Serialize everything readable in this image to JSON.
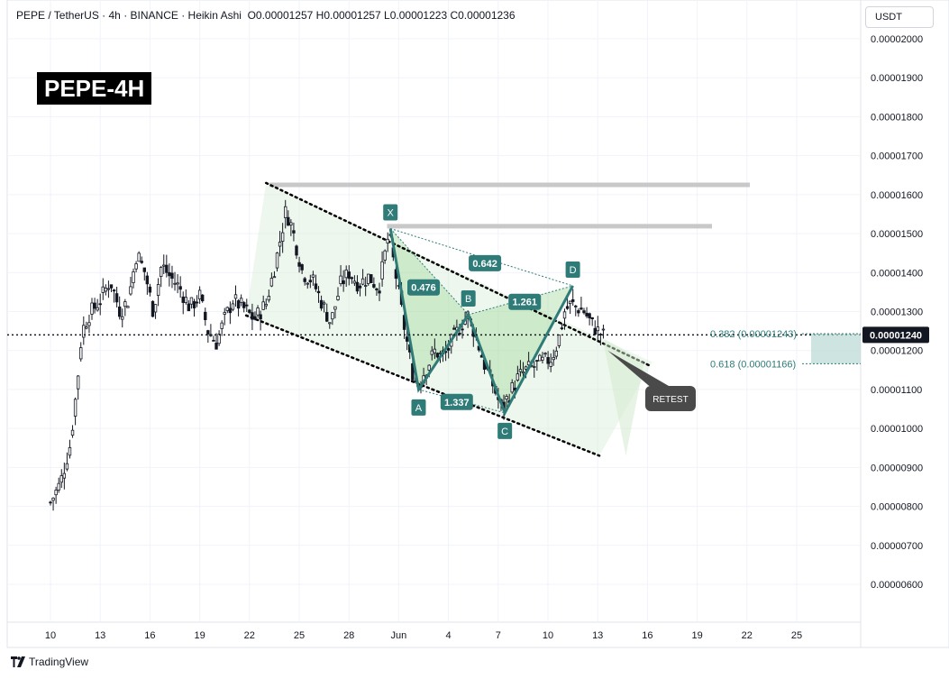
{
  "header": {
    "symbol": "PEPE / TetherUS",
    "interval": "4h",
    "exchange": "BINANCE",
    "chart_style": "Heikin Ashi",
    "ohlc_text": "O0.00001257  H0.00001257  L0.00001223  C0.00001236"
  },
  "badge": {
    "label": "PEPE-4H"
  },
  "currency_button": {
    "label": "USDT"
  },
  "footer": {
    "brand": "TradingView",
    "brand_icon": "tradingview-logo-icon"
  },
  "colors": {
    "bull": "#131722",
    "teal": "#2f7b78",
    "fill_green": "#d9eed7",
    "retest": "#4a4a4a",
    "level_gray": "#c8c8c8"
  },
  "chart_data": {
    "type": "candlestick",
    "title": "PEPE-4H",
    "x_axis": {
      "ticks": [
        "10",
        "13",
        "16",
        "19",
        "22",
        "25",
        "28",
        "Jun",
        "4",
        "7",
        "10",
        "13",
        "16",
        "19",
        "22",
        "25"
      ],
      "range_days": [
        0,
        48
      ]
    },
    "y_axis": {
      "ticks": [
        "0.00002000",
        "0.00001900",
        "0.00001800",
        "0.00001700",
        "0.00001600",
        "0.00001500",
        "0.00001400",
        "0.00001300",
        "0.00001200",
        "0.00001100",
        "0.00001000",
        "0.00000900",
        "0.00000800",
        "0.00000700",
        "0.00000600"
      ],
      "ylim": [
        5.4e-06,
        2.05e-05
      ],
      "position": "right"
    },
    "current_price": {
      "label": "0.00001240",
      "value": 1.24e-05
    },
    "price_path": [
      [
        0.0,
        8.1e-06
      ],
      [
        0.6,
        8.6e-06
      ],
      [
        1.2,
        9.6e-06
      ],
      [
        1.6,
        1.11e-05
      ],
      [
        1.9,
        1.25e-05
      ],
      [
        2.3,
        1.29e-05
      ],
      [
        3.0,
        1.33e-05
      ],
      [
        3.6,
        1.38e-05
      ],
      [
        4.2,
        1.3e-05
      ],
      [
        4.7,
        1.33e-05
      ],
      [
        5.2,
        1.45e-05
      ],
      [
        5.7,
        1.4e-05
      ],
      [
        6.2,
        1.3e-05
      ],
      [
        6.7,
        1.42e-05
      ],
      [
        7.2,
        1.39e-05
      ],
      [
        7.8,
        1.36e-05
      ],
      [
        8.4,
        1.31e-05
      ],
      [
        9.0,
        1.34e-05
      ],
      [
        9.5,
        1.25e-05
      ],
      [
        10.0,
        1.22e-05
      ],
      [
        10.5,
        1.28e-05
      ],
      [
        11.0,
        1.33e-05
      ],
      [
        11.6,
        1.31e-05
      ],
      [
        12.3,
        1.28e-05
      ],
      [
        13.0,
        1.32e-05
      ],
      [
        13.6,
        1.43e-05
      ],
      [
        14.2,
        1.56e-05
      ],
      [
        14.6,
        1.51e-05
      ],
      [
        15.2,
        1.4e-05
      ],
      [
        15.8,
        1.38e-05
      ],
      [
        16.4,
        1.32e-05
      ],
      [
        16.9,
        1.27e-05
      ],
      [
        17.5,
        1.37e-05
      ],
      [
        18.0,
        1.4e-05
      ],
      [
        18.6,
        1.37e-05
      ],
      [
        19.2,
        1.39e-05
      ],
      [
        19.8,
        1.36e-05
      ],
      [
        20.4,
        1.5e-05
      ],
      [
        20.8,
        1.4e-05
      ],
      [
        21.3,
        1.27e-05
      ],
      [
        21.8,
        1.15e-05
      ],
      [
        22.1,
        1.11e-05
      ],
      [
        22.6,
        1.15e-05
      ],
      [
        23.2,
        1.2e-05
      ],
      [
        23.7,
        1.18e-05
      ],
      [
        24.3,
        1.23e-05
      ],
      [
        24.8,
        1.27e-05
      ],
      [
        25.2,
        1.29e-05
      ],
      [
        25.7,
        1.23e-05
      ],
      [
        26.2,
        1.16e-05
      ],
      [
        26.7,
        1.11e-05
      ],
      [
        27.2,
        1.05e-05
      ],
      [
        27.7,
        1.09e-05
      ],
      [
        28.2,
        1.13e-05
      ],
      [
        28.7,
        1.15e-05
      ],
      [
        29.2,
        1.16e-05
      ],
      [
        29.7,
        1.17e-05
      ],
      [
        30.2,
        1.18e-05
      ],
      [
        30.6,
        1.22e-05
      ],
      [
        31.0,
        1.3e-05
      ],
      [
        31.4,
        1.32e-05
      ],
      [
        31.8,
        1.31e-05
      ],
      [
        32.2,
        1.3e-05
      ],
      [
        32.6,
        1.27e-05
      ],
      [
        33.0,
        1.25e-05
      ],
      [
        33.4,
        1.236e-05
      ]
    ],
    "pattern": {
      "points": [
        {
          "label": "X",
          "day": 20.5,
          "value": 1.513e-05
        },
        {
          "label": "A",
          "day": 22.2,
          "value": 1.1e-05
        },
        {
          "label": "B",
          "day": 25.2,
          "value": 1.292e-05
        },
        {
          "label": "C",
          "day": 27.4,
          "value": 1.04e-05
        },
        {
          "label": "D",
          "day": 31.5,
          "value": 1.366e-05
        }
      ],
      "ratios": [
        {
          "label": "0.476",
          "day": 22.5,
          "value": 1.362e-05
        },
        {
          "label": "0.642",
          "day": 26.2,
          "value": 1.424e-05
        },
        {
          "label": "1.261",
          "day": 28.6,
          "value": 1.325e-05
        },
        {
          "label": "1.337",
          "day": 24.5,
          "value": 1.068e-05
        }
      ]
    },
    "fib_levels": [
      {
        "label": "0.382 (0.00001243)",
        "value": 1.243e-05
      },
      {
        "label": "0.618 (0.00001166)",
        "value": 1.166e-05
      }
    ],
    "resistance_levels": [
      1.625e-05,
      1.519e-05
    ],
    "annotation": {
      "label": "RETEST"
    }
  }
}
